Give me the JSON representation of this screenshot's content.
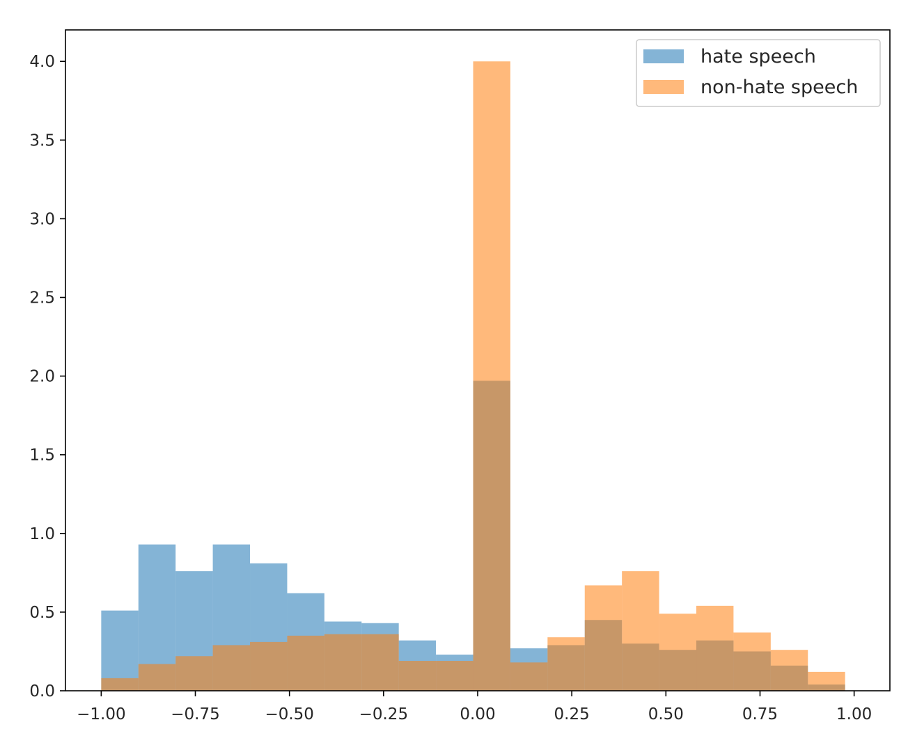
{
  "chart_data": {
    "type": "bar",
    "subtype": "overlapping-histogram",
    "title": "",
    "xlabel": "",
    "ylabel": "",
    "xlim": [
      -1.095,
      1.095
    ],
    "ylim": [
      0,
      4.2
    ],
    "grid": false,
    "legend_placement": "top-right",
    "xticks": [
      -1.0,
      -0.75,
      -0.5,
      -0.25,
      0.0,
      0.25,
      0.5,
      0.75,
      1.0
    ],
    "xtick_labels": [
      "−1.00",
      "−0.75",
      "−0.50",
      "−0.25",
      "0.00",
      "0.25",
      "0.50",
      "0.75",
      "1.00"
    ],
    "yticks": [
      0,
      0.5,
      1.0,
      1.5,
      2.0,
      2.5,
      3.0,
      3.5,
      4.0
    ],
    "ytick_labels": [
      "0.0",
      "0.5",
      "1.0",
      "1.5",
      "2.0",
      "2.5",
      "3.0",
      "3.5",
      "4.0"
    ],
    "bin_edges": [
      -1.0,
      -0.9012,
      -0.8024,
      -0.7036,
      -0.6048,
      -0.506,
      -0.4072,
      -0.3084,
      -0.2096,
      -0.1108,
      -0.012,
      0.0868,
      0.1856,
      0.2844,
      0.3832,
      0.482,
      0.5808,
      0.6796,
      0.7784,
      0.8772,
      0.976
    ],
    "series": [
      {
        "name": "hate speech",
        "color": "#1f77b4",
        "opacity": 0.55,
        "values": [
          0.51,
          0.93,
          0.76,
          0.93,
          0.81,
          0.62,
          0.44,
          0.43,
          0.32,
          0.23,
          1.97,
          0.27,
          0.29,
          0.45,
          0.3,
          0.26,
          0.32,
          0.25,
          0.16,
          0.04
        ]
      },
      {
        "name": "non-hate speech",
        "color": "#ff7f0e",
        "opacity": 0.55,
        "values": [
          0.08,
          0.17,
          0.22,
          0.29,
          0.31,
          0.35,
          0.36,
          0.36,
          0.19,
          0.19,
          4.0,
          0.18,
          0.34,
          0.67,
          0.76,
          0.49,
          0.54,
          0.37,
          0.26,
          0.12
        ]
      }
    ]
  }
}
